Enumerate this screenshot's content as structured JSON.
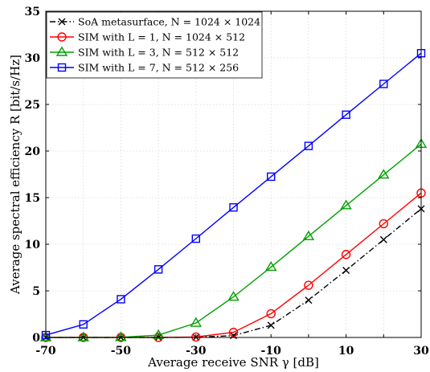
{
  "chart_data": {
    "type": "line",
    "xlabel": "Average receive SNR γ [dB]",
    "ylabel": "Average spectral efficiency R [bit/s/Hz]",
    "xlim": [
      -70,
      30
    ],
    "ylim": [
      0,
      35
    ],
    "x_ticks": [
      -70,
      -50,
      -30,
      -10,
      10,
      30
    ],
    "x_tick_labels": [
      "-70",
      "-50",
      "-30",
      "-10",
      "10",
      "30"
    ],
    "y_ticks": [
      0,
      5,
      10,
      15,
      20,
      25,
      30,
      35
    ],
    "y_tick_labels": [
      "0",
      "5",
      "10",
      "15",
      "20",
      "25",
      "30",
      "35"
    ],
    "grid": true,
    "legend_position": "top-left",
    "x": [
      -70,
      -60,
      -50,
      -40,
      -30,
      -20,
      -10,
      0,
      10,
      20,
      30
    ],
    "series": [
      {
        "name": "SoA metasurface, N = 1024 × 1024",
        "color": "#000000",
        "line_style": "dashdot",
        "marker": "x",
        "values": [
          0,
          0,
          0,
          0,
          0.02,
          0.2,
          1.3,
          4.0,
          7.2,
          10.5,
          13.8
        ]
      },
      {
        "name": "SIM with L = 1, N = 1024 × 512",
        "color": "#ff0000",
        "line_style": "solid",
        "marker": "circle",
        "values": [
          0,
          0,
          0,
          0,
          0.05,
          0.55,
          2.55,
          5.6,
          8.9,
          12.2,
          15.5
        ]
      },
      {
        "name": "SIM with L = 3, N = 512 × 512",
        "color": "#00a000",
        "line_style": "solid",
        "marker": "triangle",
        "values": [
          0,
          0,
          0.02,
          0.25,
          1.55,
          4.35,
          7.55,
          10.85,
          14.15,
          17.45,
          20.75
        ]
      },
      {
        "name": "SIM with L = 7, N = 512 × 256",
        "color": "#0000ff",
        "line_style": "solid",
        "marker": "square",
        "values": [
          0.25,
          1.4,
          4.1,
          7.3,
          10.6,
          13.95,
          17.25,
          20.55,
          23.9,
          27.2,
          30.5
        ]
      }
    ]
  }
}
